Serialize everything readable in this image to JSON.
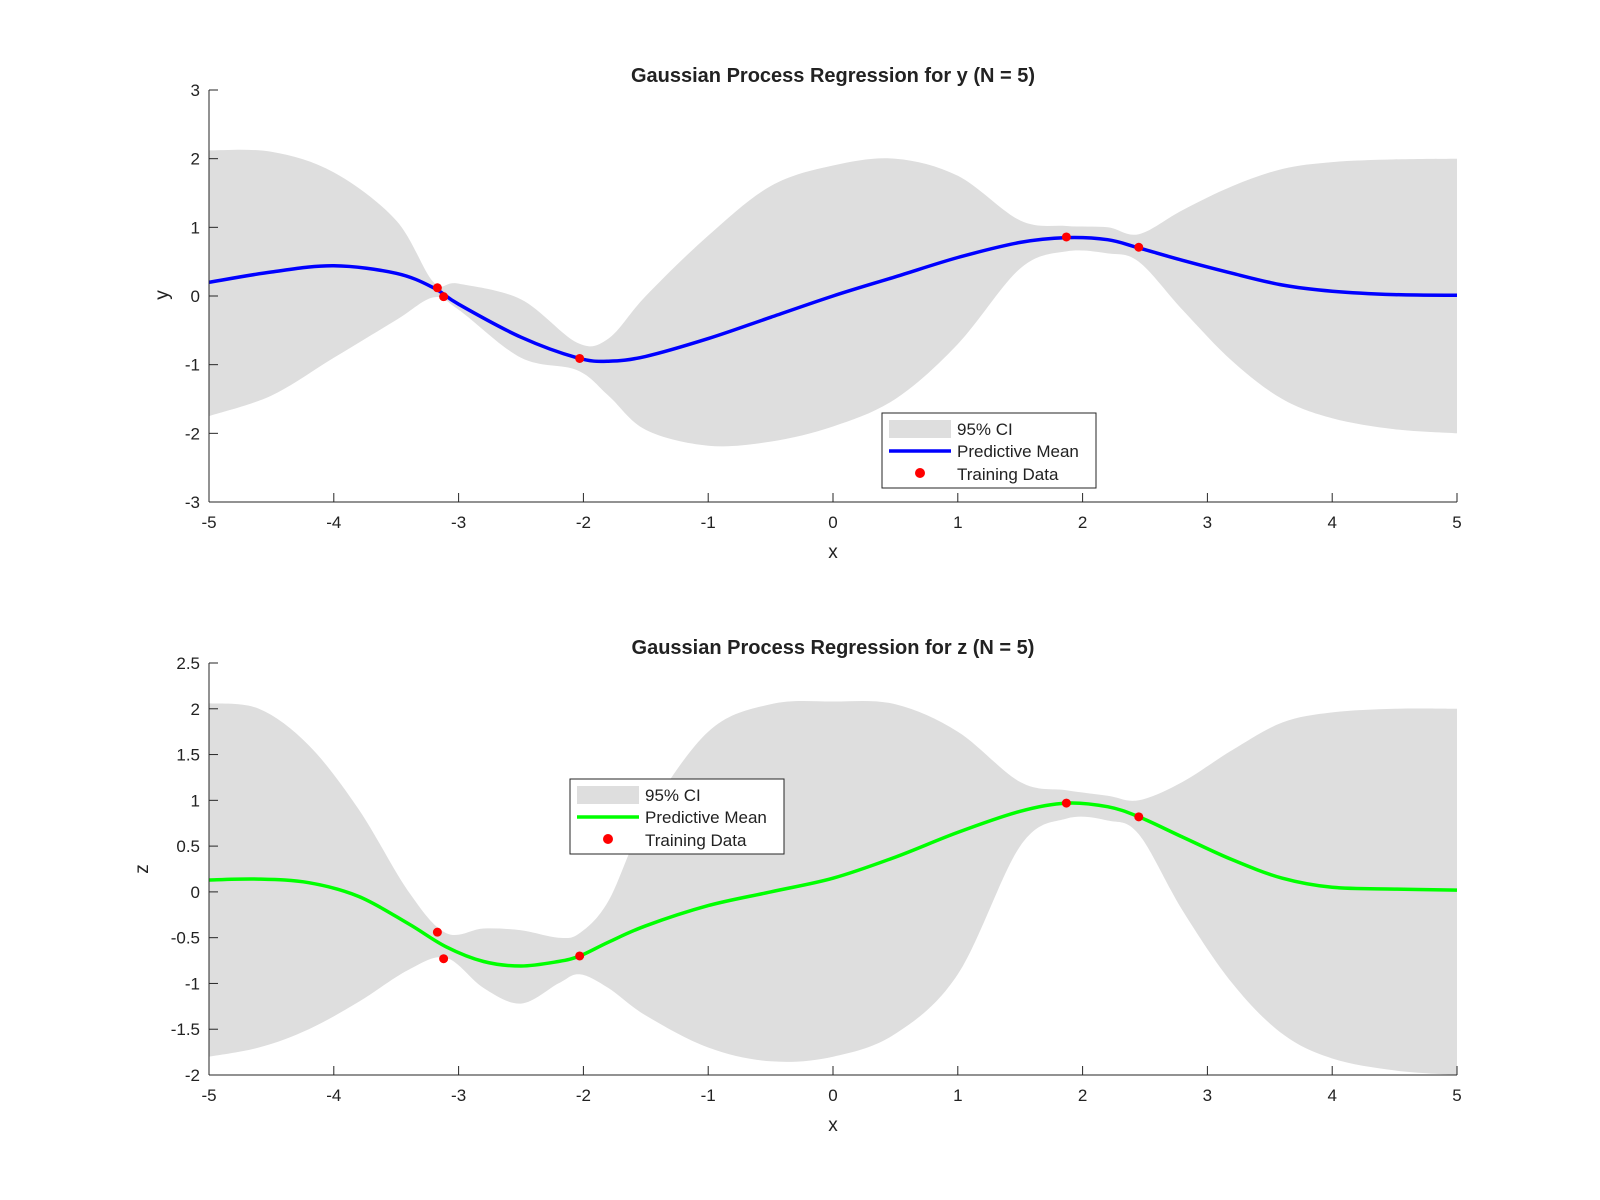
{
  "colors": {
    "ci_fill": "#dedede",
    "mean_y": "#0000ff",
    "mean_z": "#00ff00",
    "points": "#ff0000",
    "axes": "#262626"
  },
  "chart_data": [
    {
      "type": "line",
      "title": "Gaussian Process Regression for y (N = 5)",
      "xlabel": "x",
      "ylabel": "y",
      "xlim": [
        -5,
        5
      ],
      "ylim": [
        -3,
        3
      ],
      "xticks": [
        "-5",
        "-4",
        "-3",
        "-2",
        "-1",
        "0",
        "1",
        "2",
        "3",
        "4",
        "5"
      ],
      "yticks": [
        "-3",
        "-2",
        "-1",
        "0",
        "1",
        "2",
        "3"
      ],
      "grid": false,
      "legend_position": "bottom-center",
      "legend": [
        "95% CI",
        "Predictive Mean",
        "Training Data"
      ],
      "x": [
        -5,
        -4.5,
        -4,
        -3.5,
        -3.2,
        -3,
        -2.5,
        -2.05,
        -1.8,
        -1.5,
        -1,
        -0.5,
        0,
        0.5,
        1,
        1.5,
        1.87,
        2.2,
        2.45,
        2.8,
        3.2,
        3.6,
        4,
        4.5,
        5
      ],
      "series": [
        {
          "name": "Predictive Mean",
          "role": "mean",
          "values": [
            0.2,
            0.35,
            0.44,
            0.33,
            0.12,
            -0.12,
            -0.6,
            -0.9,
            -0.95,
            -0.88,
            -0.62,
            -0.31,
            0.0,
            0.28,
            0.56,
            0.78,
            0.85,
            0.82,
            0.7,
            0.52,
            0.33,
            0.16,
            0.07,
            0.02,
            0.01
          ]
        },
        {
          "name": "95% CI",
          "role": "band",
          "lower": [
            -1.75,
            -1.45,
            -0.9,
            -0.35,
            -0.02,
            -0.2,
            -0.9,
            -1.08,
            -1.45,
            -1.95,
            -2.18,
            -2.12,
            -1.9,
            -1.5,
            -0.7,
            0.4,
            0.65,
            0.62,
            0.5,
            -0.2,
            -0.95,
            -1.5,
            -1.78,
            -1.94,
            -2.0
          ],
          "upper": [
            2.12,
            2.1,
            1.8,
            1.1,
            0.2,
            0.18,
            -0.05,
            -0.68,
            -0.62,
            0.0,
            0.88,
            1.6,
            1.9,
            2.0,
            1.75,
            1.1,
            1.02,
            1.0,
            0.9,
            1.25,
            1.6,
            1.85,
            1.95,
            1.99,
            2.0
          ]
        }
      ],
      "points": {
        "name": "Training Data",
        "x": [
          -3.17,
          -3.12,
          -2.03,
          1.87,
          2.45
        ],
        "y": [
          0.12,
          -0.01,
          -0.91,
          0.86,
          0.71
        ]
      }
    },
    {
      "type": "line",
      "title": "Gaussian Process Regression for z (N = 5)",
      "xlabel": "x",
      "ylabel": "z",
      "xlim": [
        -5,
        5
      ],
      "ylim": [
        -2,
        2.5
      ],
      "xticks": [
        "-5",
        "-4",
        "-3",
        "-2",
        "-1",
        "0",
        "1",
        "2",
        "3",
        "4",
        "5"
      ],
      "yticks": [
        "-2",
        "-1.5",
        "-1",
        "-0.5",
        "0",
        "0.5",
        "1",
        "1.5",
        "2",
        "2.5"
      ],
      "grid": false,
      "legend_position": "upper-left",
      "legend": [
        "95% CI",
        "Predictive Mean",
        "Training Data"
      ],
      "x": [
        -5,
        -4.6,
        -4.2,
        -3.8,
        -3.4,
        -3.1,
        -2.8,
        -2.5,
        -2.2,
        -2.03,
        -1.8,
        -1.5,
        -1,
        -0.5,
        0,
        0.5,
        1,
        1.5,
        1.87,
        2.2,
        2.45,
        2.8,
        3.2,
        3.6,
        4,
        4.5,
        5
      ],
      "series": [
        {
          "name": "Predictive Mean",
          "role": "mean",
          "values": [
            0.13,
            0.14,
            0.1,
            -0.05,
            -0.35,
            -0.6,
            -0.76,
            -0.81,
            -0.76,
            -0.7,
            -0.55,
            -0.37,
            -0.15,
            0.0,
            0.15,
            0.38,
            0.65,
            0.88,
            0.97,
            0.93,
            0.82,
            0.6,
            0.35,
            0.15,
            0.05,
            0.03,
            0.02
          ]
        },
        {
          "name": "95% CI",
          "role": "band",
          "lower": [
            -1.8,
            -1.7,
            -1.5,
            -1.2,
            -0.85,
            -0.72,
            -1.05,
            -1.22,
            -1.0,
            -0.9,
            -1.05,
            -1.35,
            -1.7,
            -1.85,
            -1.8,
            -1.55,
            -0.9,
            0.5,
            0.8,
            0.78,
            0.63,
            -0.2,
            -1.0,
            -1.55,
            -1.82,
            -1.95,
            -2.0
          ],
          "upper": [
            2.06,
            2.0,
            1.6,
            0.9,
            0.0,
            -0.45,
            -0.4,
            -0.42,
            -0.5,
            -0.45,
            -0.1,
            0.8,
            1.75,
            2.05,
            2.08,
            2.05,
            1.75,
            1.2,
            1.11,
            1.05,
            1.0,
            1.2,
            1.55,
            1.85,
            1.96,
            2.0,
            2.0
          ]
        }
      ],
      "points": {
        "name": "Training Data",
        "x": [
          -3.17,
          -3.12,
          -2.03,
          1.87,
          2.45
        ],
        "y": [
          -0.44,
          -0.73,
          -0.7,
          0.97,
          0.82
        ]
      }
    }
  ]
}
